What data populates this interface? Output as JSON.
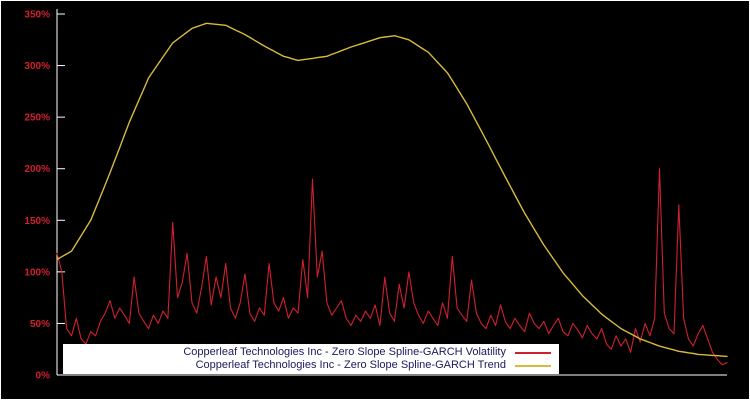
{
  "chart": {
    "background": "#000000",
    "axis_color": "#ffffff",
    "tick_label_color": "#d0202f",
    "y_axis": {
      "min": 0,
      "max": 350,
      "ticks": [
        {
          "label": "0%",
          "value": 0
        },
        {
          "label": "50%",
          "value": 50
        },
        {
          "label": "100%",
          "value": 100
        },
        {
          "label": "150%",
          "value": 150
        },
        {
          "label": "200%",
          "value": 200
        },
        {
          "label": "250%",
          "value": 250
        },
        {
          "label": "300%",
          "value": 300
        },
        {
          "label": "350%",
          "value": 350
        }
      ]
    }
  },
  "legend": {
    "items": [
      {
        "label": "Copperleaf Technologies Inc - Zero Slope Spline-GARCH Volatility",
        "color": "#d0202f"
      },
      {
        "label": "Copperleaf Technologies Inc - Zero Slope Spline-GARCH Trend",
        "color": "#d8ba3c"
      }
    ]
  },
  "chart_data": {
    "type": "line",
    "ylim": [
      0,
      350
    ],
    "y_unit": "%",
    "legend_position": "bottom-left-inside",
    "grid": false,
    "series": [
      {
        "name": "Copperleaf Technologies Inc - Zero Slope Spline-GARCH Volatility",
        "color": "#d0202f",
        "values": [
          118,
          100,
          45,
          38,
          55,
          35,
          30,
          42,
          38,
          52,
          60,
          72,
          55,
          65,
          58,
          50,
          95,
          60,
          52,
          45,
          58,
          50,
          62,
          55,
          148,
          75,
          90,
          118,
          70,
          60,
          85,
          115,
          68,
          95,
          75,
          108,
          65,
          55,
          70,
          98,
          60,
          52,
          65,
          58,
          108,
          70,
          62,
          75,
          55,
          65,
          60,
          112,
          75,
          190,
          95,
          120,
          70,
          58,
          65,
          72,
          55,
          48,
          58,
          52,
          62,
          55,
          68,
          48,
          95,
          60,
          52,
          88,
          65,
          100,
          70,
          58,
          50,
          62,
          55,
          48,
          70,
          55,
          115,
          65,
          58,
          52,
          92,
          60,
          50,
          45,
          58,
          48,
          68,
          52,
          45,
          55,
          48,
          42,
          60,
          50,
          45,
          52,
          40,
          48,
          55,
          42,
          38,
          50,
          44,
          36,
          48,
          40,
          35,
          45,
          30,
          25,
          38,
          28,
          35,
          22,
          45,
          32,
          50,
          38,
          55,
          200,
          60,
          45,
          40,
          165,
          55,
          35,
          28,
          40,
          48,
          35,
          22,
          15,
          10,
          12
        ]
      },
      {
        "name": "Copperleaf Technologies Inc - Zero Slope Spline-GARCH Trend",
        "color": "#d8ba3c",
        "values": [
          112,
          114.7,
          117.3,
          120,
          127.5,
          135,
          142.5,
          150,
          161.5,
          173,
          184.5,
          196,
          208.3,
          220.5,
          232.8,
          245,
          255.8,
          266.5,
          277.3,
          288,
          294.8,
          301.6,
          308.4,
          315.2,
          322,
          325.5,
          329,
          332.5,
          336,
          337.7,
          339.3,
          341,
          340.5,
          340,
          339.5,
          339,
          336.8,
          334.5,
          332.3,
          330,
          327.3,
          324.5,
          321.8,
          319,
          316.5,
          314,
          311.5,
          309,
          307.7,
          306.3,
          305,
          305.7,
          306.3,
          307,
          307.7,
          308.3,
          309,
          310.8,
          312.6,
          314.4,
          316.2,
          318,
          319.5,
          321,
          322.5,
          324,
          325.5,
          327,
          327.7,
          328.3,
          329,
          327.7,
          326.3,
          325,
          322,
          319,
          316,
          313,
          308,
          303,
          298,
          293,
          285.5,
          278,
          270.5,
          263,
          254.3,
          245.5,
          236.8,
          228,
          219,
          210,
          201,
          192,
          183.3,
          174.5,
          165.8,
          157,
          149.3,
          141.5,
          133.8,
          126,
          119.3,
          112.5,
          105.8,
          99,
          93.5,
          88,
          82.5,
          77,
          72.5,
          68,
          63.5,
          59,
          55.5,
          52,
          48.5,
          45,
          42.5,
          40,
          37.5,
          35,
          33.3,
          31.5,
          29.8,
          28,
          26.8,
          25.5,
          24.3,
          23,
          22.3,
          21.5,
          20.8,
          20,
          19.7,
          19.3,
          19,
          18.7,
          18.3,
          18
        ]
      }
    ]
  }
}
